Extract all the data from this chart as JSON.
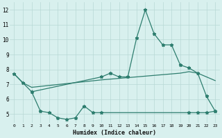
{
  "line1_x": [
    0,
    1,
    2,
    10,
    11,
    12,
    13,
    14,
    15,
    16,
    17,
    18,
    19,
    20,
    21,
    22,
    23
  ],
  "line1_y": [
    7.7,
    7.1,
    6.5,
    7.5,
    7.75,
    7.5,
    7.5,
    10.1,
    12.0,
    10.4,
    9.65,
    9.65,
    8.3,
    8.1,
    7.75,
    6.2,
    5.2
  ],
  "line2_x": [
    0,
    1,
    2,
    10,
    11,
    12,
    13,
    14,
    15,
    16,
    17,
    18,
    19,
    20,
    21,
    22,
    23
  ],
  "line2_y": [
    7.7,
    7.1,
    6.8,
    7.3,
    7.35,
    7.4,
    7.45,
    7.5,
    7.55,
    7.6,
    7.65,
    7.7,
    7.75,
    7.85,
    7.75,
    7.5,
    7.25
  ],
  "line3_x": [
    2,
    3,
    4,
    5,
    6,
    7,
    8,
    9,
    10,
    20,
    21,
    22,
    23
  ],
  "line3_y": [
    6.5,
    5.2,
    5.1,
    4.75,
    4.65,
    4.75,
    5.55,
    5.1,
    5.1,
    5.1,
    5.1,
    5.1,
    5.2
  ],
  "line_color": "#2d7d6e",
  "bg_color": "#d8f0ee",
  "grid_color": "#b8d8d5",
  "xlabel": "Humidex (Indice chaleur)",
  "xlim": [
    -0.5,
    23.5
  ],
  "ylim": [
    4.4,
    12.5
  ],
  "yticks": [
    5,
    6,
    7,
    8,
    9,
    10,
    11,
    12
  ],
  "xticks": [
    0,
    1,
    2,
    3,
    4,
    5,
    6,
    7,
    8,
    9,
    10,
    11,
    12,
    13,
    14,
    15,
    16,
    17,
    18,
    19,
    20,
    21,
    22,
    23
  ],
  "xtick_labels": [
    "0",
    "1",
    "2",
    "3",
    "4",
    "5",
    "6",
    "7",
    "8",
    "9",
    "10",
    "11",
    "12",
    "13",
    "14",
    "15",
    "16",
    "17",
    "18",
    "19",
    "20",
    "21",
    "22",
    "23"
  ]
}
